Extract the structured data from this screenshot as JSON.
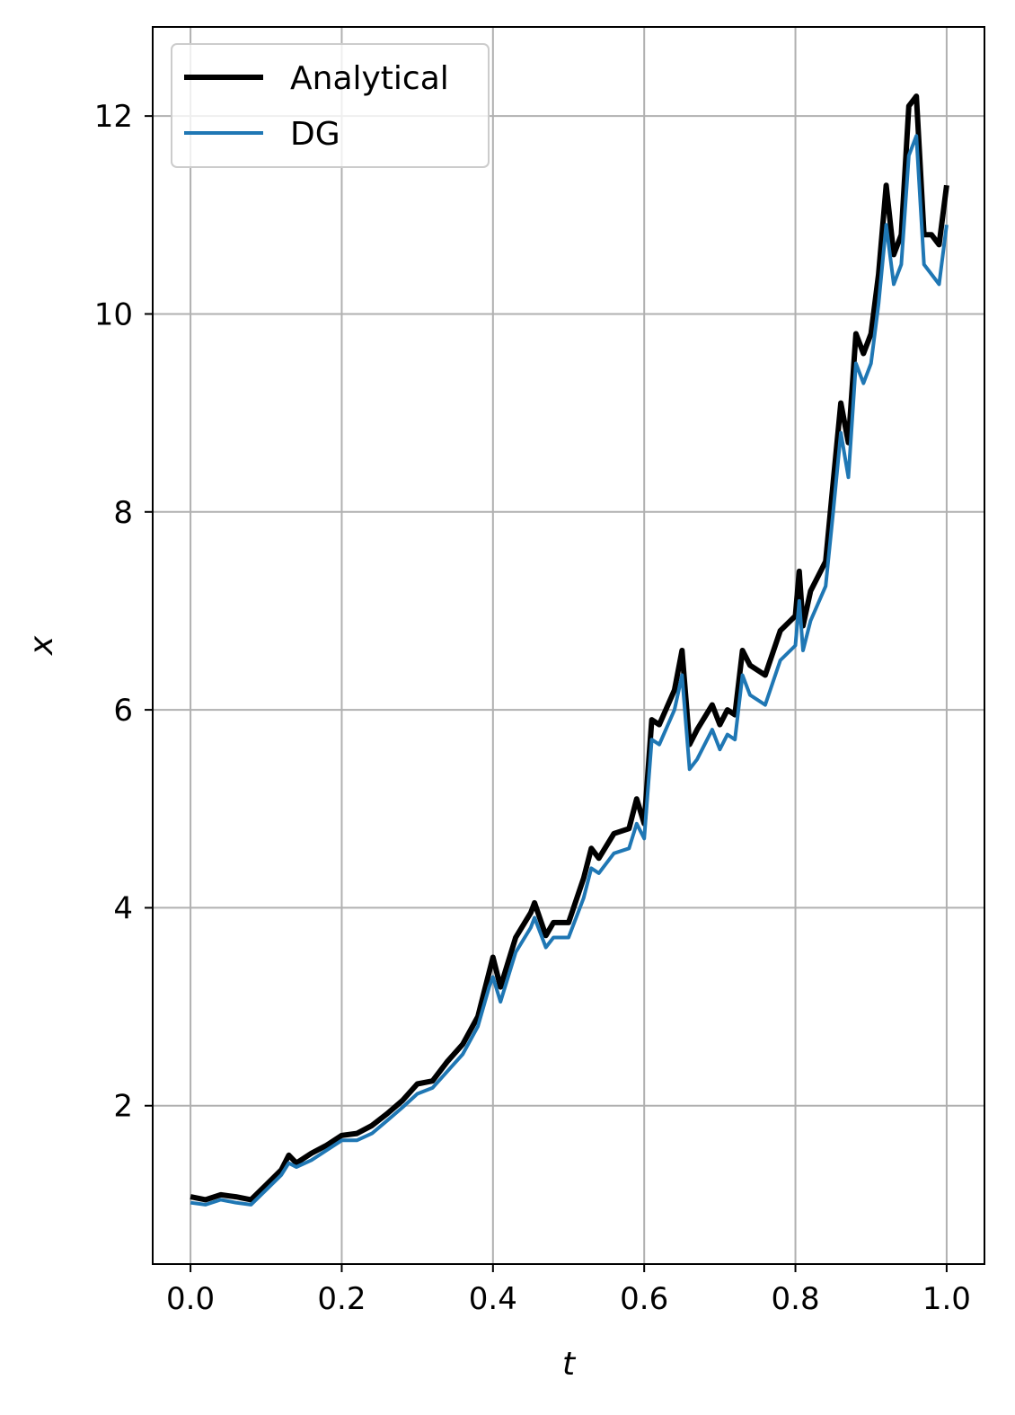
{
  "chart_data": {
    "type": "line",
    "xlabel": "t",
    "ylabel": "x",
    "xlim": [
      -0.05,
      1.05
    ],
    "ylim": [
      0.4,
      12.9
    ],
    "xticks": [
      0.0,
      0.2,
      0.4,
      0.6,
      0.8,
      1.0
    ],
    "xtick_labels": [
      "0.0",
      "0.2",
      "0.4",
      "0.6",
      "0.8",
      "1.0"
    ],
    "yticks": [
      2,
      4,
      6,
      8,
      10,
      12
    ],
    "ytick_labels": [
      "2",
      "4",
      "6",
      "8",
      "10",
      "12"
    ],
    "grid": true,
    "legend_position": "top-left",
    "series": [
      {
        "name": "Analytical",
        "color": "#000000",
        "x": [
          0.0,
          0.02,
          0.04,
          0.06,
          0.08,
          0.1,
          0.12,
          0.13,
          0.14,
          0.16,
          0.18,
          0.2,
          0.22,
          0.24,
          0.26,
          0.28,
          0.3,
          0.32,
          0.34,
          0.36,
          0.38,
          0.395,
          0.4,
          0.41,
          0.43,
          0.45,
          0.455,
          0.47,
          0.48,
          0.5,
          0.52,
          0.53,
          0.54,
          0.56,
          0.58,
          0.59,
          0.6,
          0.61,
          0.62,
          0.64,
          0.65,
          0.66,
          0.67,
          0.69,
          0.7,
          0.71,
          0.72,
          0.73,
          0.74,
          0.76,
          0.78,
          0.8,
          0.805,
          0.81,
          0.82,
          0.84,
          0.85,
          0.86,
          0.87,
          0.88,
          0.89,
          0.9,
          0.91,
          0.92,
          0.93,
          0.94,
          0.95,
          0.96,
          0.97,
          0.98,
          0.99,
          1.0
        ],
        "y": [
          1.08,
          1.05,
          1.1,
          1.08,
          1.05,
          1.2,
          1.35,
          1.5,
          1.42,
          1.52,
          1.6,
          1.7,
          1.72,
          1.8,
          1.92,
          2.05,
          2.22,
          2.25,
          2.45,
          2.62,
          2.9,
          3.35,
          3.5,
          3.2,
          3.7,
          3.95,
          4.05,
          3.72,
          3.85,
          3.85,
          4.3,
          4.6,
          4.5,
          4.75,
          4.8,
          5.1,
          4.85,
          5.9,
          5.85,
          6.2,
          6.6,
          5.65,
          5.8,
          6.05,
          5.85,
          6.0,
          5.95,
          6.6,
          6.45,
          6.35,
          6.8,
          6.95,
          7.4,
          6.85,
          7.2,
          7.5,
          8.3,
          9.1,
          8.7,
          9.8,
          9.6,
          9.8,
          10.4,
          11.3,
          10.6,
          10.8,
          12.1,
          12.2,
          10.8,
          10.8,
          10.7,
          11.3
        ]
      },
      {
        "name": "DG",
        "color": "#1f77b4",
        "x": [
          0.0,
          0.02,
          0.04,
          0.06,
          0.08,
          0.1,
          0.12,
          0.13,
          0.14,
          0.16,
          0.18,
          0.2,
          0.22,
          0.24,
          0.26,
          0.28,
          0.3,
          0.32,
          0.34,
          0.36,
          0.38,
          0.395,
          0.4,
          0.41,
          0.43,
          0.45,
          0.455,
          0.47,
          0.48,
          0.5,
          0.52,
          0.53,
          0.54,
          0.56,
          0.58,
          0.59,
          0.6,
          0.61,
          0.62,
          0.64,
          0.65,
          0.66,
          0.67,
          0.69,
          0.7,
          0.71,
          0.72,
          0.73,
          0.74,
          0.76,
          0.78,
          0.8,
          0.805,
          0.81,
          0.82,
          0.84,
          0.85,
          0.86,
          0.87,
          0.88,
          0.89,
          0.9,
          0.91,
          0.92,
          0.93,
          0.94,
          0.95,
          0.96,
          0.97,
          0.98,
          0.99,
          1.0
        ],
        "y": [
          1.02,
          1.0,
          1.05,
          1.02,
          1.0,
          1.15,
          1.3,
          1.42,
          1.38,
          1.45,
          1.55,
          1.65,
          1.65,
          1.72,
          1.85,
          1.98,
          2.12,
          2.18,
          2.35,
          2.52,
          2.8,
          3.2,
          3.3,
          3.05,
          3.55,
          3.8,
          3.9,
          3.6,
          3.7,
          3.7,
          4.1,
          4.4,
          4.35,
          4.55,
          4.6,
          4.85,
          4.7,
          5.7,
          5.65,
          6.0,
          6.35,
          5.4,
          5.5,
          5.8,
          5.6,
          5.75,
          5.7,
          6.35,
          6.15,
          6.05,
          6.5,
          6.65,
          7.1,
          6.6,
          6.9,
          7.25,
          8.0,
          8.8,
          8.35,
          9.5,
          9.3,
          9.5,
          10.1,
          10.9,
          10.3,
          10.5,
          11.6,
          11.8,
          10.5,
          10.4,
          10.3,
          10.9
        ]
      }
    ]
  }
}
